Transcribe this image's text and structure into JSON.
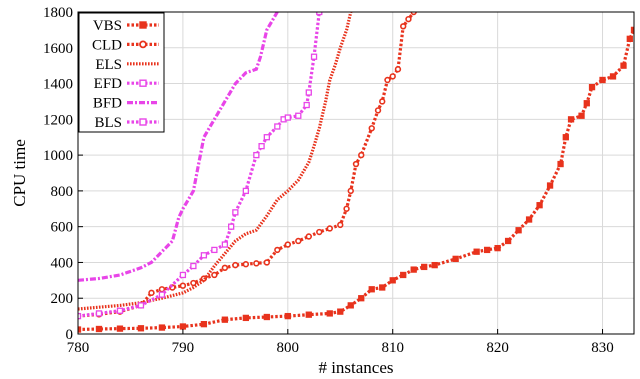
{
  "chart_data": {
    "type": "line",
    "title": "",
    "xlabel": "# instances",
    "ylabel": "CPU time",
    "xlim": [
      780,
      833
    ],
    "ylim": [
      0,
      1800
    ],
    "xticks": [
      "780",
      "790",
      "800",
      "810",
      "820",
      "830"
    ],
    "yticks": [
      "0",
      "200",
      "400",
      "600",
      "800",
      "1000",
      "1200",
      "1400",
      "1600",
      "1800"
    ],
    "grid": true,
    "legend_position": "top-left",
    "series": [
      {
        "name": "VBS",
        "color": "#e8331d",
        "dash": "dotted",
        "marker": "square-dot",
        "points": [
          [
            780,
            25
          ],
          [
            782,
            28
          ],
          [
            784,
            30
          ],
          [
            786,
            32
          ],
          [
            788,
            36
          ],
          [
            790,
            42
          ],
          [
            792,
            55
          ],
          [
            794,
            80
          ],
          [
            796,
            90
          ],
          [
            798,
            95
          ],
          [
            800,
            100
          ],
          [
            802,
            108
          ],
          [
            804,
            115
          ],
          [
            805,
            125
          ],
          [
            806,
            160
          ],
          [
            807,
            200
          ],
          [
            808,
            250
          ],
          [
            809,
            260
          ],
          [
            810,
            300
          ],
          [
            811,
            330
          ],
          [
            812,
            360
          ],
          [
            813,
            375
          ],
          [
            814,
            385
          ],
          [
            816,
            420
          ],
          [
            818,
            460
          ],
          [
            819,
            470
          ],
          [
            820,
            480
          ],
          [
            821,
            520
          ],
          [
            822,
            580
          ],
          [
            823,
            640
          ],
          [
            824,
            720
          ],
          [
            825,
            830
          ],
          [
            826,
            950
          ],
          [
            826.5,
            1100
          ],
          [
            827,
            1200
          ],
          [
            828,
            1220
          ],
          [
            828.5,
            1290
          ],
          [
            829,
            1380
          ],
          [
            830,
            1420
          ],
          [
            831,
            1440
          ],
          [
            832,
            1500
          ],
          [
            832.6,
            1650
          ],
          [
            833,
            1700
          ]
        ]
      },
      {
        "name": "CLD",
        "color": "#e8331d",
        "dash": "dotted",
        "marker": "circle",
        "points": [
          [
            780,
            100
          ],
          [
            782,
            110
          ],
          [
            784,
            125
          ],
          [
            786,
            160
          ],
          [
            787,
            230
          ],
          [
            788,
            250
          ],
          [
            789,
            260
          ],
          [
            790,
            270
          ],
          [
            791,
            285
          ],
          [
            792,
            310
          ],
          [
            793,
            330
          ],
          [
            794,
            370
          ],
          [
            795,
            385
          ],
          [
            796,
            390
          ],
          [
            797,
            395
          ],
          [
            798,
            400
          ],
          [
            799,
            470
          ],
          [
            800,
            500
          ],
          [
            801,
            520
          ],
          [
            802,
            545
          ],
          [
            803,
            570
          ],
          [
            804,
            590
          ],
          [
            805,
            610
          ],
          [
            805.6,
            700
          ],
          [
            806,
            800
          ],
          [
            806.5,
            950
          ],
          [
            807,
            1000
          ],
          [
            808,
            1150
          ],
          [
            808.6,
            1250
          ],
          [
            809,
            1300
          ],
          [
            809.5,
            1420
          ],
          [
            810,
            1440
          ],
          [
            810.5,
            1480
          ],
          [
            811,
            1720
          ],
          [
            811.5,
            1760
          ],
          [
            812,
            1800
          ]
        ]
      },
      {
        "name": "ELS",
        "color": "#e8331d",
        "dash": "dense-dotted",
        "marker": "none",
        "points": [
          [
            780,
            140
          ],
          [
            782,
            150
          ],
          [
            784,
            160
          ],
          [
            786,
            175
          ],
          [
            788,
            200
          ],
          [
            790,
            230
          ],
          [
            791,
            260
          ],
          [
            792,
            300
          ],
          [
            793,
            380
          ],
          [
            794,
            450
          ],
          [
            795,
            520
          ],
          [
            796,
            560
          ],
          [
            797,
            580
          ],
          [
            798,
            660
          ],
          [
            799,
            750
          ],
          [
            800,
            800
          ],
          [
            801,
            860
          ],
          [
            802,
            960
          ],
          [
            802.5,
            1050
          ],
          [
            803,
            1150
          ],
          [
            803.6,
            1300
          ],
          [
            804,
            1420
          ],
          [
            804.5,
            1500
          ],
          [
            805,
            1600
          ],
          [
            805.6,
            1700
          ],
          [
            806,
            1800
          ]
        ]
      },
      {
        "name": "EFD",
        "color": "#e845e8",
        "dash": "dotted",
        "marker": "square-open",
        "points": [
          [
            780,
            100
          ],
          [
            782,
            115
          ],
          [
            784,
            130
          ],
          [
            786,
            160
          ],
          [
            788,
            220
          ],
          [
            790,
            330
          ],
          [
            791,
            380
          ],
          [
            792,
            440
          ],
          [
            793,
            470
          ],
          [
            794,
            500
          ],
          [
            794.6,
            600
          ],
          [
            795,
            680
          ],
          [
            796,
            800
          ],
          [
            797,
            1000
          ],
          [
            797.5,
            1050
          ],
          [
            798,
            1100
          ],
          [
            799,
            1160
          ],
          [
            799.6,
            1200
          ],
          [
            800,
            1210
          ],
          [
            801,
            1220
          ],
          [
            801.8,
            1280
          ],
          [
            802,
            1350
          ],
          [
            802.5,
            1550
          ],
          [
            803,
            1800
          ]
        ]
      },
      {
        "name": "BFD",
        "color": "#e845e8",
        "dash": "dash-dot",
        "marker": "none",
        "points": [
          [
            780,
            300
          ],
          [
            782,
            310
          ],
          [
            784,
            330
          ],
          [
            786,
            370
          ],
          [
            787,
            400
          ],
          [
            788,
            460
          ],
          [
            789,
            520
          ],
          [
            789.6,
            650
          ],
          [
            790,
            700
          ],
          [
            791,
            800
          ],
          [
            791.5,
            950
          ],
          [
            792,
            1100
          ],
          [
            793,
            1200
          ],
          [
            794,
            1300
          ],
          [
            795,
            1400
          ],
          [
            796,
            1460
          ],
          [
            797,
            1480
          ],
          [
            797.4,
            1550
          ],
          [
            798,
            1700
          ],
          [
            798.5,
            1750
          ],
          [
            799,
            1800
          ]
        ]
      },
      {
        "name": "BLS",
        "color": "#e845e8",
        "dash": "dotted",
        "marker": "square-open",
        "points": []
      }
    ]
  }
}
